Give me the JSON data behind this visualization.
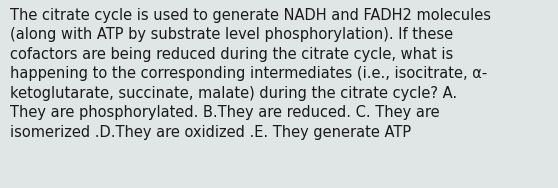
{
  "text": "The citrate cycle is used to generate NADH and FADH2 molecules\n(along with ATP by substrate level phosphorylation). If these\ncofactors are being reduced during the citrate cycle, what is\nhappening to the corresponding intermediates (i.e., isocitrate, α-\nketoglutarate, succinate, malate) during the citrate cycle? A.\nThey are phosphorylated. B.They are reduced. C. They are\nisomerized .D.They are oxidized .E. They generate ATP",
  "background_color": "#e0e5e5",
  "text_color": "#1a1a1a",
  "font_size": 10.5,
  "fig_width": 5.58,
  "fig_height": 1.88,
  "dpi": 100
}
